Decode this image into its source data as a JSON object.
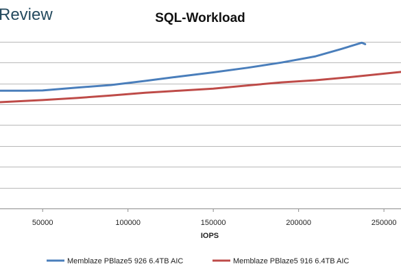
{
  "brand": {
    "text": "Review"
  },
  "chart_data": {
    "type": "line",
    "title": "SQL-Workload",
    "xlabel": "IOPS",
    "ylabel": "",
    "xlim": [
      25000,
      260000
    ],
    "ylim": [
      0,
      10
    ],
    "x_ticks": [
      50000,
      100000,
      150000,
      200000,
      250000
    ],
    "x_tick_labels": [
      "50000",
      "100000",
      "150000",
      "200000",
      "250000"
    ],
    "y_gridlines": [
      0,
      1,
      2,
      3,
      4,
      5,
      6,
      7,
      8
    ],
    "y_tick_labels_visible": false,
    "grid": true,
    "legend_position": "bottom",
    "series": [
      {
        "name": "Memblaze PBlaze5 926 6.4TB AIC",
        "color": "#4a7ebb",
        "x": [
          25000,
          40000,
          50000,
          70000,
          90000,
          110000,
          130000,
          150000,
          170000,
          190000,
          210000,
          225000,
          235000,
          237000,
          239000
        ],
        "y": [
          5.65,
          5.65,
          5.66,
          5.8,
          5.92,
          6.12,
          6.33,
          6.53,
          6.75,
          7.0,
          7.3,
          7.65,
          7.9,
          7.95,
          7.88
        ]
      },
      {
        "name": "Memblaze PBlaze5 916 6.4TB AIC",
        "color": "#be4b48",
        "x": [
          25000,
          50000,
          70000,
          90000,
          110000,
          130000,
          150000,
          170000,
          190000,
          210000,
          230000,
          260000
        ],
        "y": [
          5.1,
          5.2,
          5.3,
          5.42,
          5.55,
          5.65,
          5.75,
          5.9,
          6.05,
          6.15,
          6.3,
          6.55
        ]
      }
    ]
  }
}
